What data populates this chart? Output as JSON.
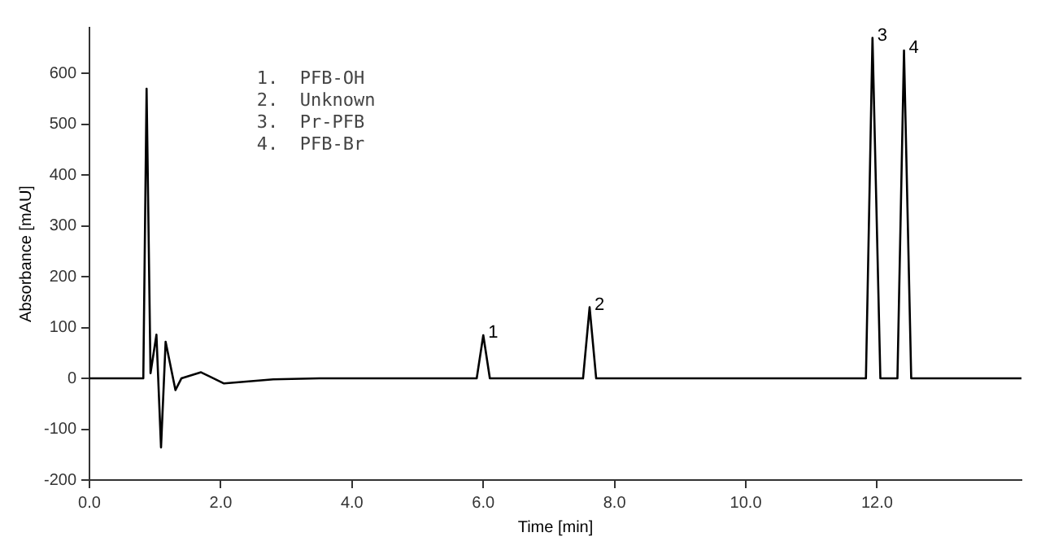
{
  "chart_data": {
    "type": "line",
    "xlabel": "Time [min]",
    "ylabel": "Absorbance [mAU]",
    "xlim": [
      0,
      14.2
    ],
    "ylim": [
      -200,
      690
    ],
    "xticks": [
      {
        "value": 0,
        "label": "0.0"
      },
      {
        "value": 2,
        "label": "2.0"
      },
      {
        "value": 4,
        "label": "4.0"
      },
      {
        "value": 6,
        "label": "6.0"
      },
      {
        "value": 8,
        "label": "8.0"
      },
      {
        "value": 10,
        "label": "10.0"
      },
      {
        "value": 12,
        "label": "12.0"
      }
    ],
    "yticks": [
      -200,
      -100,
      0,
      100,
      200,
      300,
      400,
      500,
      600
    ],
    "grid": false,
    "legend": false,
    "marker": "none",
    "line_style": "solid",
    "series": [
      {
        "color": "#000000",
        "x": [
          0,
          0.82,
          0.87,
          0.93,
          1.02,
          1.09,
          1.16,
          1.31,
          1.4,
          1.7,
          2.05,
          2.8,
          3.5,
          5.9,
          6.0,
          6.1,
          7.52,
          7.62,
          7.72,
          11.83,
          11.93,
          12.05,
          12.17,
          12.31,
          12.41,
          12.52,
          12.65,
          14.2
        ],
        "values": [
          0,
          0,
          570,
          10,
          86,
          -136,
          72,
          -23,
          0,
          12,
          -10,
          -2,
          0,
          0,
          85,
          0,
          0,
          140,
          0,
          0,
          670,
          0,
          0,
          0,
          645,
          0,
          0,
          0
        ]
      }
    ],
    "annotations": [
      "1.  PFB-OH",
      "2.  Unknown",
      "3.  Pr-PFB",
      "4.  PFB-Br",
      {
        "text": "1",
        "x": 6.0,
        "y": 85
      },
      {
        "text": "2",
        "x": 7.62,
        "y": 140
      },
      {
        "text": "3",
        "x": 11.93,
        "y": 670
      },
      {
        "text": "4",
        "x": 12.41,
        "y": 645
      }
    ]
  }
}
